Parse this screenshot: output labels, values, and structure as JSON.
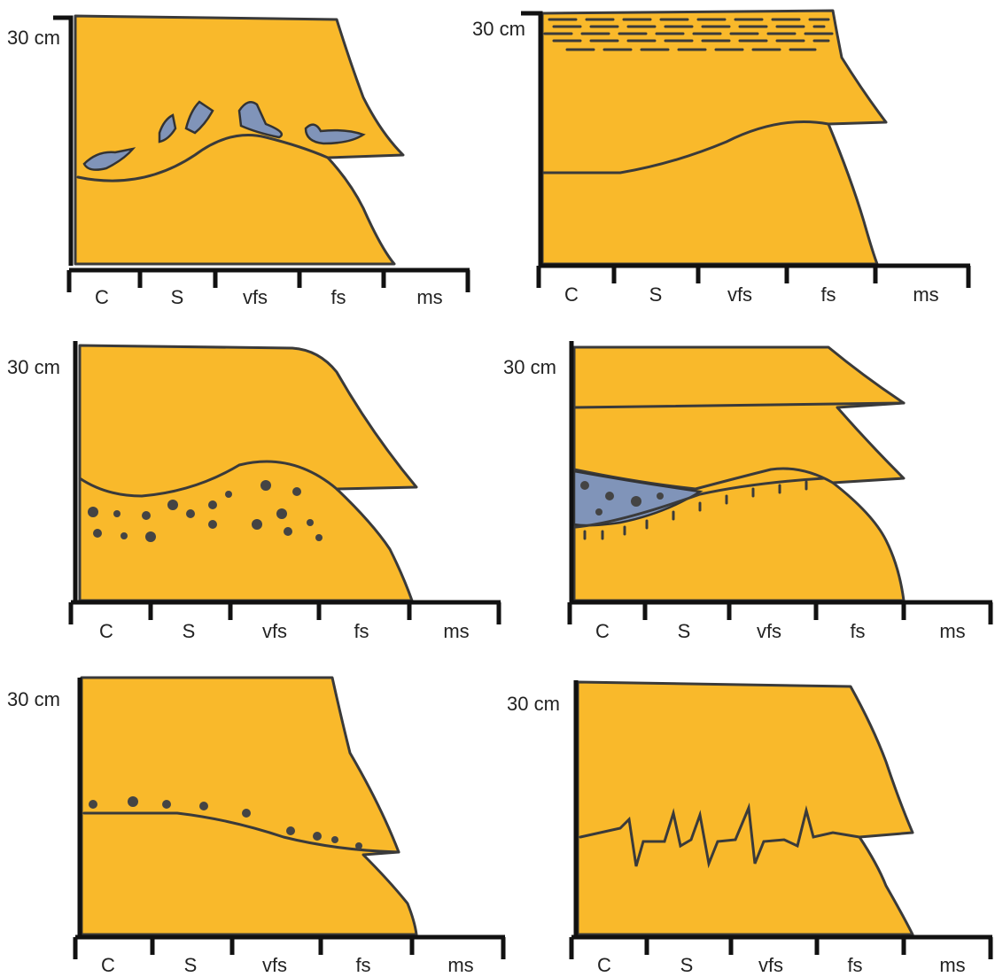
{
  "panels": [
    {
      "scale_label": "30 cm",
      "grain_sizes": [
        "C",
        "S",
        "vfs",
        "fs",
        "ms"
      ]
    },
    {
      "scale_label": "30 cm",
      "grain_sizes": [
        "C",
        "S",
        "vfs",
        "fs",
        "ms"
      ]
    },
    {
      "scale_label": "30 cm",
      "grain_sizes": [
        "C",
        "S",
        "vfs",
        "fs",
        "ms"
      ]
    },
    {
      "scale_label": "30 cm",
      "grain_sizes": [
        "C",
        "S",
        "vfs",
        "fs",
        "ms"
      ]
    },
    {
      "scale_label": "30 cm",
      "grain_sizes": [
        "C",
        "S",
        "vfs",
        "fs",
        "ms"
      ]
    },
    {
      "scale_label": "30 cm",
      "grain_sizes": [
        "C",
        "S",
        "vfs",
        "fs",
        "ms"
      ]
    }
  ]
}
